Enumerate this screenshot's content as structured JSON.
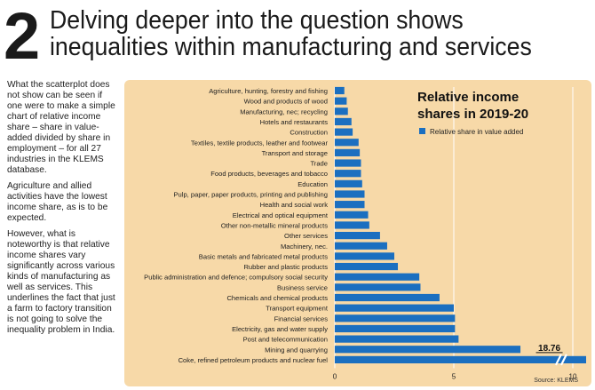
{
  "header": {
    "number": "2",
    "title_line1": "Delving deeper into the question shows",
    "title_line2": "inequalities within manufacturing and services"
  },
  "sidebar": {
    "paragraphs": [
      "What the scatterplot does not show can be seen if one were to make a simple chart of relative income share – share in value-added divided by share in employment – for all 27 industries in the KLEMS database.",
      "Agriculture and allied activities have the lowest income share, as is to be expected.",
      "However, what is noteworthy is that relative income shares vary significantly across various kinds of manufacturing as well as services. This underlines the fact that just a farm to factory transition is not going to solve the inequality problem in India."
    ]
  },
  "chart_data": {
    "type": "bar",
    "orientation": "horizontal",
    "title_line1": "Relative income",
    "title_line2": "shares in 2019-20",
    "legend": "Relative share in value added",
    "legend_position": "top-right",
    "source": "Source: KLEMS",
    "xlim": [
      0,
      10.5
    ],
    "x_ticks": [
      0,
      5,
      10
    ],
    "axis_break": true,
    "grid": true,
    "bar_color": "#1b6fc0",
    "categories": [
      "Agriculture, hunting, forestry and fishing",
      "Wood and products of wood",
      "Manufacturing, nec; recycling",
      "Hotels and restaurants",
      "Construction",
      "Textiles, textile products, leather and footwear",
      "Transport and storage",
      "Trade",
      "Food products, beverages and tobacco",
      "Education",
      "Pulp, paper, paper products, printing and publishing",
      "Health and social work",
      "Electrical and optical equipment",
      "Other non-metallic mineral products",
      "Other services",
      "Machinery, nec.",
      "Basic metals and fabricated metal products",
      "Rubber and plastic products",
      "Public administration and defence; compulsory social security",
      "Business service",
      "Chemicals and chemical products",
      "Transport equipment",
      "Financial services",
      "Electricity, gas and water supply",
      "Post and telecommunication",
      "Mining and quarrying",
      "Coke, refined petroleum products and nuclear fuel"
    ],
    "values": [
      0.4,
      0.5,
      0.55,
      0.7,
      0.75,
      1.0,
      1.05,
      1.1,
      1.1,
      1.15,
      1.25,
      1.25,
      1.4,
      1.45,
      1.9,
      2.2,
      2.5,
      2.65,
      3.55,
      3.6,
      4.4,
      5.0,
      5.05,
      5.05,
      5.2,
      7.8,
      18.76
    ],
    "data_labels": [
      {
        "index": 26,
        "text": "18.76"
      }
    ]
  }
}
